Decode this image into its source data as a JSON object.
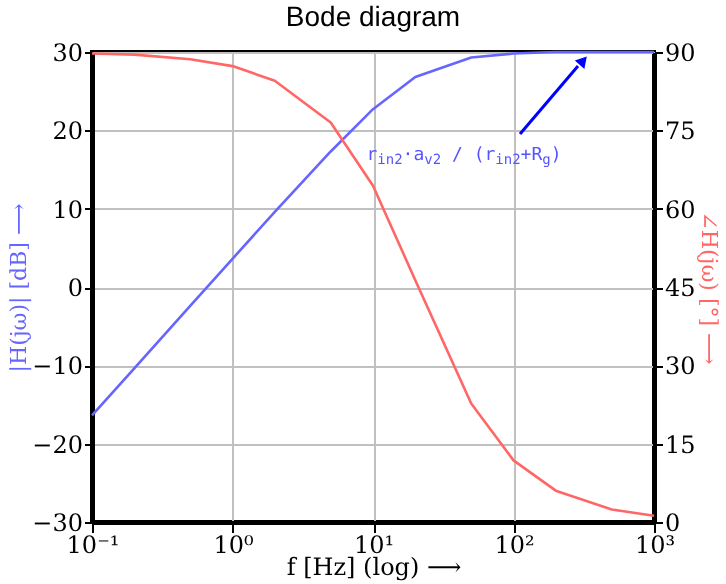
{
  "chart_data": {
    "type": "line",
    "title": "Bode diagram",
    "xlabel": "f [Hz] (log) ⟶",
    "ylabel": "|H(jω)| [dB] ⟶",
    "y2label": "∠H(jω) [°] ⟶",
    "x": [
      0.1,
      0.2,
      0.5,
      1,
      2,
      5,
      10,
      20,
      50,
      100,
      200,
      500,
      1000
    ],
    "series": [
      {
        "color": "#6666ff",
        "values": [
          -16.4,
          -10.4,
          -2.4,
          3.6,
          9.6,
          17.3,
          22.7,
          26.8,
          29.3,
          29.8,
          30.0,
          30.0,
          30.0
        ]
      },
      {
        "color": "#ff6666",
        "axis": "y2",
        "values": [
          89.7,
          89.5,
          88.6,
          87.3,
          84.5,
          76.5,
          64.4,
          46.3,
          22.7,
          11.8,
          6.0,
          2.4,
          1.2
        ]
      }
    ],
    "log": "x",
    "xlim": [
      0.1,
      1000
    ],
    "xticks": [
      {
        "value": 0.1,
        "label": "10⁻¹"
      },
      {
        "value": 1,
        "label": "10⁰"
      },
      {
        "value": 10,
        "label": "10¹"
      },
      {
        "value": 100,
        "label": "10²"
      },
      {
        "value": 1000,
        "label": "10³"
      }
    ],
    "ylim": [
      -30,
      30
    ],
    "yticks": [
      -30,
      -20,
      -10,
      0,
      10,
      20,
      30
    ],
    "y2lim": [
      0,
      90
    ],
    "y2ticks": [
      0,
      15,
      30,
      45,
      60,
      75,
      90
    ],
    "grid": true,
    "marker": "none",
    "line_style": "solid",
    "annotations": [
      "r$_{in2}$·a$_{v2}$ / (r$_{in2}$+R$_{g}$)"
    ]
  }
}
